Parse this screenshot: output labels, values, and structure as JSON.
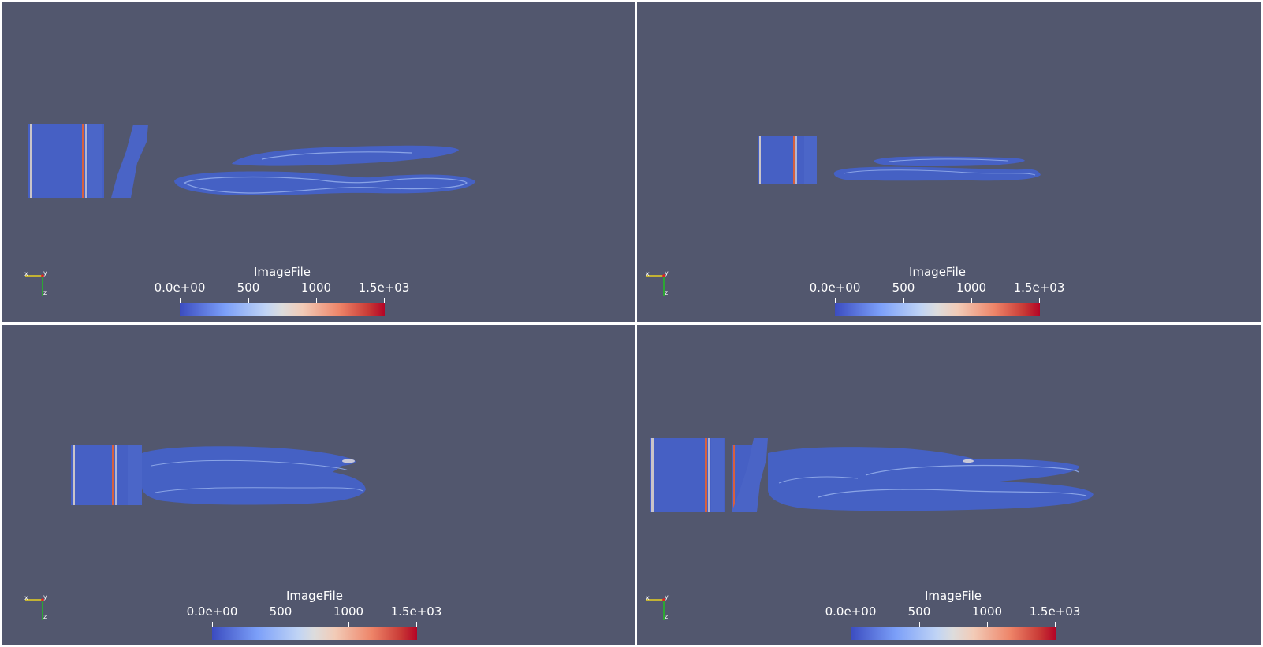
{
  "colorbar": {
    "title": "ImageFile",
    "tick_labels": [
      "0.0e+00",
      "500",
      "1000",
      "1.5e+03"
    ],
    "range": [
      0,
      1500
    ],
    "colormap": "Cool to Warm",
    "colors": {
      "low": "#3b4cc0",
      "mid": "#dddcdc",
      "high": "#b40426"
    }
  },
  "axes": {
    "labels": [
      "x",
      "y",
      "z"
    ]
  },
  "background_color": "#52576e",
  "viewports": [
    {
      "name": "top-left"
    },
    {
      "name": "top-right"
    },
    {
      "name": "bottom-left"
    },
    {
      "name": "bottom-right"
    }
  ]
}
